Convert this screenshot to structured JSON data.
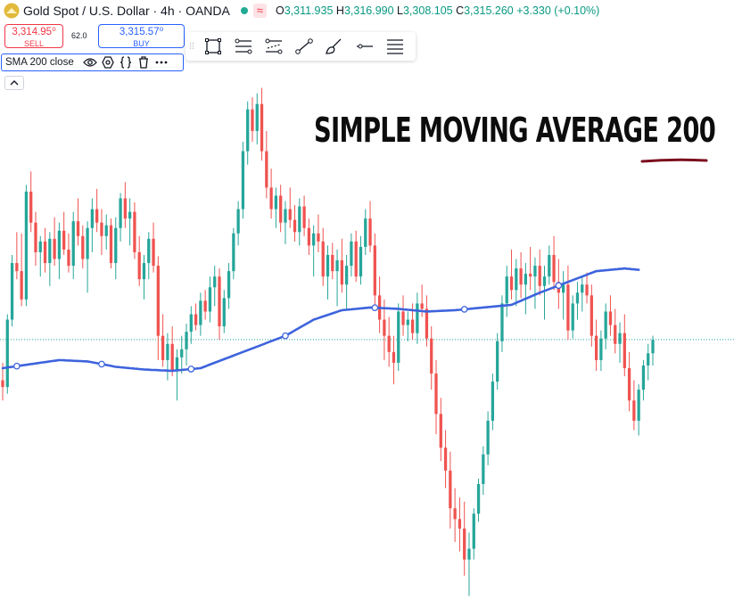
{
  "header": {
    "symbol": "Gold Spot / U.S. Dollar · 4h · OANDA",
    "wave_badge": "≈",
    "open_label": "O",
    "open_value": "3,311.935",
    "high_label": "H",
    "high_value": "3,316.990",
    "low_label": "L",
    "low_value": "3,308.105",
    "close_label": "C",
    "close_value": "3,315.260",
    "change_value": "+3.330 (+0.10%)"
  },
  "trade": {
    "sell_price": "3,314.95⁰",
    "sell_label": "SELL",
    "spread": "62.0",
    "buy_price": "3,315.57⁰",
    "buy_label": "BUY"
  },
  "indicator": {
    "title": "SMA 200 close"
  },
  "annotation": {
    "text": "SIMPLE MOVING AVERAGE 200"
  },
  "colors": {
    "up": "#26a69a",
    "down": "#ef5350",
    "sma": "#3d63dd",
    "underline": "#7b0f1f",
    "last_price_line": "#26a69a"
  },
  "icons": [
    "gold-logo-icon",
    "eye-icon",
    "settings-icon",
    "braces-icon",
    "trash-icon",
    "more-icon",
    "chevron-up-icon",
    "rectangle-tool-icon",
    "trend-angle-tool-icon",
    "ray-tool-icon",
    "polyline-tool-icon",
    "brush-tool-icon",
    "horizontal-line-tool-icon",
    "menu-icon"
  ],
  "chart_data": {
    "type": "candlestick",
    "y_axis": {
      "min": 3120,
      "max": 3505
    },
    "last_price": 3315.26,
    "candles": [
      [
        3285,
        3298,
        3270,
        3280
      ],
      [
        3280,
        3334,
        3275,
        3330
      ],
      [
        3330,
        3378,
        3325,
        3372
      ],
      [
        3372,
        3395,
        3360,
        3366
      ],
      [
        3366,
        3394,
        3340,
        3345
      ],
      [
        3345,
        3430,
        3340,
        3425
      ],
      [
        3425,
        3440,
        3395,
        3402
      ],
      [
        3402,
        3410,
        3370,
        3380
      ],
      [
        3380,
        3392,
        3362,
        3388
      ],
      [
        3388,
        3398,
        3365,
        3372
      ],
      [
        3372,
        3395,
        3355,
        3390
      ],
      [
        3390,
        3406,
        3370,
        3375
      ],
      [
        3375,
        3402,
        3360,
        3396
      ],
      [
        3396,
        3410,
        3378,
        3382
      ],
      [
        3382,
        3394,
        3365,
        3370
      ],
      [
        3370,
        3410,
        3360,
        3403
      ],
      [
        3403,
        3420,
        3385,
        3392
      ],
      [
        3392,
        3400,
        3368,
        3375
      ],
      [
        3375,
        3403,
        3350,
        3398
      ],
      [
        3398,
        3420,
        3380,
        3412
      ],
      [
        3412,
        3427,
        3395,
        3402
      ],
      [
        3402,
        3412,
        3378,
        3392
      ],
      [
        3392,
        3408,
        3382,
        3400
      ],
      [
        3400,
        3405,
        3368,
        3372
      ],
      [
        3372,
        3406,
        3360,
        3398
      ],
      [
        3398,
        3424,
        3388,
        3420
      ],
      [
        3420,
        3432,
        3398,
        3405
      ],
      [
        3405,
        3420,
        3385,
        3410
      ],
      [
        3410,
        3417,
        3375,
        3380
      ],
      [
        3380,
        3392,
        3355,
        3360
      ],
      [
        3360,
        3378,
        3345,
        3372
      ],
      [
        3372,
        3395,
        3360,
        3390
      ],
      [
        3390,
        3402,
        3365,
        3370
      ],
      [
        3370,
        3377,
        3300,
        3318
      ],
      [
        3318,
        3334,
        3295,
        3300
      ],
      [
        3300,
        3320,
        3285,
        3312
      ],
      [
        3312,
        3325,
        3288,
        3292
      ],
      [
        3292,
        3308,
        3270,
        3302
      ],
      [
        3302,
        3318,
        3290,
        3308
      ],
      [
        3308,
        3327,
        3296,
        3321
      ],
      [
        3321,
        3340,
        3312,
        3334
      ],
      [
        3334,
        3342,
        3322,
        3326
      ],
      [
        3326,
        3350,
        3318,
        3344
      ],
      [
        3344,
        3352,
        3330,
        3336
      ],
      [
        3336,
        3362,
        3328,
        3354
      ],
      [
        3354,
        3370,
        3340,
        3362
      ],
      [
        3362,
        3368,
        3315,
        3325
      ],
      [
        3325,
        3352,
        3320,
        3346
      ],
      [
        3346,
        3372,
        3338,
        3366
      ],
      [
        3366,
        3398,
        3360,
        3394
      ],
      [
        3394,
        3418,
        3385,
        3412
      ],
      [
        3412,
        3462,
        3405,
        3455
      ],
      [
        3455,
        3492,
        3445,
        3486
      ],
      [
        3486,
        3495,
        3462,
        3470
      ],
      [
        3470,
        3498,
        3460,
        3490
      ],
      [
        3490,
        3502,
        3448,
        3455
      ],
      [
        3455,
        3470,
        3420,
        3428
      ],
      [
        3428,
        3442,
        3405,
        3412
      ],
      [
        3412,
        3428,
        3398,
        3422
      ],
      [
        3422,
        3430,
        3395,
        3402
      ],
      [
        3402,
        3418,
        3386,
        3412
      ],
      [
        3412,
        3428,
        3398,
        3404
      ],
      [
        3404,
        3415,
        3388,
        3395
      ],
      [
        3395,
        3420,
        3385,
        3414
      ],
      [
        3414,
        3422,
        3392,
        3398
      ],
      [
        3398,
        3405,
        3378,
        3385
      ],
      [
        3385,
        3400,
        3362,
        3394
      ],
      [
        3394,
        3408,
        3380,
        3388
      ],
      [
        3388,
        3398,
        3355,
        3362
      ],
      [
        3362,
        3385,
        3345,
        3378
      ],
      [
        3378,
        3387,
        3360,
        3366
      ],
      [
        3366,
        3382,
        3340,
        3374
      ],
      [
        3374,
        3390,
        3350,
        3356
      ],
      [
        3356,
        3378,
        3338,
        3370
      ],
      [
        3370,
        3394,
        3362,
        3388
      ],
      [
        3388,
        3396,
        3358,
        3362
      ],
      [
        3362,
        3392,
        3356,
        3384
      ],
      [
        3384,
        3412,
        3378,
        3405
      ],
      [
        3405,
        3418,
        3380,
        3385
      ],
      [
        3385,
        3394,
        3340,
        3348
      ],
      [
        3348,
        3362,
        3320,
        3330
      ],
      [
        3330,
        3345,
        3300,
        3318
      ],
      [
        3318,
        3332,
        3295,
        3306
      ],
      [
        3306,
        3318,
        3282,
        3298
      ],
      [
        3298,
        3342,
        3292,
        3336
      ],
      [
        3336,
        3348,
        3318,
        3326
      ],
      [
        3326,
        3336,
        3314,
        3330
      ],
      [
        3330,
        3342,
        3315,
        3320
      ],
      [
        3320,
        3350,
        3312,
        3342
      ],
      [
        3342,
        3356,
        3332,
        3338
      ],
      [
        3338,
        3348,
        3310,
        3316
      ],
      [
        3316,
        3325,
        3278,
        3290
      ],
      [
        3290,
        3300,
        3245,
        3260
      ],
      [
        3260,
        3272,
        3225,
        3235
      ],
      [
        3235,
        3248,
        3205,
        3218
      ],
      [
        3218,
        3232,
        3175,
        3190
      ],
      [
        3190,
        3205,
        3165,
        3182
      ],
      [
        3182,
        3198,
        3158,
        3175
      ],
      [
        3175,
        3195,
        3140,
        3152
      ],
      [
        3152,
        3172,
        3125,
        3160
      ],
      [
        3160,
        3190,
        3152,
        3186
      ],
      [
        3186,
        3212,
        3180,
        3208
      ],
      [
        3208,
        3236,
        3200,
        3230
      ],
      [
        3230,
        3262,
        3222,
        3255
      ],
      [
        3255,
        3290,
        3248,
        3284
      ],
      [
        3284,
        3320,
        3278,
        3314
      ],
      [
        3314,
        3348,
        3306,
        3342
      ],
      [
        3342,
        3370,
        3332,
        3362
      ],
      [
        3362,
        3382,
        3345,
        3352
      ],
      [
        3352,
        3375,
        3340,
        3368
      ],
      [
        3368,
        3380,
        3346,
        3356
      ],
      [
        3356,
        3372,
        3334,
        3364
      ],
      [
        3364,
        3384,
        3352,
        3362
      ],
      [
        3362,
        3376,
        3338,
        3370
      ],
      [
        3370,
        3382,
        3348,
        3355
      ],
      [
        3355,
        3370,
        3330,
        3362
      ],
      [
        3362,
        3385,
        3356,
        3378
      ],
      [
        3378,
        3392,
        3352,
        3358
      ],
      [
        3358,
        3375,
        3338,
        3350
      ],
      [
        3350,
        3366,
        3330,
        3356
      ],
      [
        3356,
        3370,
        3315,
        3322
      ],
      [
        3322,
        3348,
        3316,
        3342
      ],
      [
        3342,
        3358,
        3330,
        3350
      ],
      [
        3350,
        3362,
        3336,
        3356
      ],
      [
        3356,
        3365,
        3342,
        3348
      ],
      [
        3348,
        3356,
        3310,
        3318
      ],
      [
        3318,
        3330,
        3292,
        3300
      ],
      [
        3300,
        3322,
        3292,
        3316
      ],
      [
        3316,
        3342,
        3308,
        3336
      ],
      [
        3336,
        3348,
        3318,
        3326
      ],
      [
        3326,
        3338,
        3305,
        3312
      ],
      [
        3312,
        3328,
        3298,
        3320
      ],
      [
        3320,
        3334,
        3288,
        3294
      ],
      [
        3294,
        3306,
        3262,
        3270
      ],
      [
        3270,
        3285,
        3248,
        3255
      ],
      [
        3255,
        3282,
        3244,
        3278
      ],
      [
        3278,
        3300,
        3270,
        3296
      ],
      [
        3296,
        3312,
        3285,
        3305
      ],
      [
        3305,
        3318,
        3296,
        3315
      ]
    ],
    "sma200": [
      [
        0,
        3294
      ],
      [
        6,
        3297
      ],
      [
        12,
        3300
      ],
      [
        18,
        3299
      ],
      [
        24,
        3295
      ],
      [
        30,
        3293
      ],
      [
        36,
        3292
      ],
      [
        42,
        3294
      ],
      [
        48,
        3302
      ],
      [
        54,
        3310
      ],
      [
        60,
        3318
      ],
      [
        66,
        3330
      ],
      [
        72,
        3337
      ],
      [
        78,
        3339
      ],
      [
        84,
        3338
      ],
      [
        90,
        3336
      ],
      [
        96,
        3337
      ],
      [
        102,
        3339
      ],
      [
        108,
        3341
      ],
      [
        114,
        3350
      ],
      [
        120,
        3358
      ],
      [
        126,
        3366
      ],
      [
        132,
        3368
      ],
      [
        135,
        3367
      ]
    ],
    "sma200_markers": [
      3,
      21,
      40,
      60,
      79,
      98,
      118
    ]
  }
}
